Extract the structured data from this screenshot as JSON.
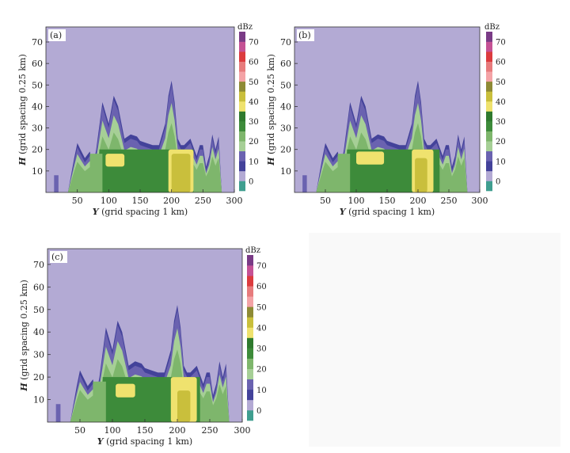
{
  "chart_data": [
    {
      "type": "heatmap",
      "panel_label": "(a)",
      "xlabel_var": "Y",
      "xlabel_rest": " (grid spacing 1 km)",
      "ylabel_var": "H",
      "ylabel_rest": " (grid spacing 0.25 km)",
      "xlim": [
        0,
        300
      ],
      "ylim": [
        0,
        77
      ],
      "x_ticks": [
        50,
        100,
        150,
        200,
        250,
        300
      ],
      "y_ticks": [
        10,
        20,
        30,
        40,
        50,
        60,
        70
      ],
      "colorbar_unit": "dBz",
      "colorbar_ticks": [
        0,
        10,
        20,
        30,
        40,
        50,
        60,
        70
      ],
      "echo_profile": {
        "x": [
          0,
          20,
          35,
          45,
          50,
          55,
          62,
          70,
          75,
          80,
          90,
          100,
          108,
          115,
          125,
          135,
          145,
          150,
          160,
          170,
          180,
          190,
          195,
          200,
          205,
          210,
          215,
          220,
          230,
          240,
          245,
          250,
          255,
          260,
          265,
          270,
          275,
          280,
          285,
          300
        ],
        "top": [
          0,
          0,
          0,
          16,
          23,
          20,
          16,
          19,
          12,
          20,
          42,
          32,
          45,
          40,
          25,
          27,
          26,
          24,
          23,
          22,
          22,
          32,
          45,
          52,
          42,
          25,
          22,
          22,
          25,
          17,
          22,
          22,
          12,
          17,
          27,
          20,
          26,
          0,
          0,
          0
        ]
      },
      "cores": [
        {
          "dbz": 30,
          "y_range": [
            195,
            235
          ],
          "h_range": [
            0,
            20
          ]
        },
        {
          "dbz": 35,
          "y_range": [
            200,
            230
          ],
          "h_range": [
            0,
            18
          ]
        },
        {
          "dbz": 30,
          "y_range": [
            95,
            125
          ],
          "h_range": [
            12,
            18
          ]
        }
      ]
    },
    {
      "type": "heatmap",
      "panel_label": "(b)",
      "xlabel_var": "Y",
      "xlabel_rest": " (grid spacing 1 km)",
      "ylabel_var": "H",
      "ylabel_rest": " (grid spacing 0.25 km)",
      "xlim": [
        0,
        300
      ],
      "ylim": [
        0,
        77
      ],
      "x_ticks": [
        50,
        100,
        150,
        200,
        250,
        300
      ],
      "y_ticks": [
        10,
        20,
        30,
        40,
        50,
        60,
        70
      ],
      "colorbar_unit": "dBz",
      "colorbar_ticks": [
        0,
        10,
        20,
        30,
        40,
        50,
        60,
        70
      ],
      "echo_profile": {
        "x": [
          0,
          20,
          35,
          45,
          50,
          55,
          62,
          70,
          75,
          80,
          90,
          100,
          108,
          115,
          125,
          135,
          145,
          150,
          160,
          170,
          180,
          190,
          195,
          200,
          205,
          210,
          215,
          220,
          230,
          240,
          245,
          250,
          255,
          260,
          265,
          270,
          275,
          280,
          285,
          300
        ],
        "top": [
          0,
          0,
          0,
          16,
          23,
          20,
          16,
          19,
          12,
          20,
          42,
          32,
          45,
          40,
          25,
          27,
          26,
          24,
          23,
          22,
          22,
          32,
          45,
          52,
          42,
          25,
          22,
          22,
          25,
          17,
          22,
          22,
          12,
          17,
          27,
          20,
          26,
          0,
          0,
          0
        ]
      },
      "cores": [
        {
          "dbz": 30,
          "y_range": [
            190,
            225
          ],
          "h_range": [
            0,
            20
          ]
        },
        {
          "dbz": 35,
          "y_range": [
            195,
            215
          ],
          "h_range": [
            0,
            16
          ]
        },
        {
          "dbz": 30,
          "y_range": [
            100,
            145
          ],
          "h_range": [
            13,
            19
          ]
        }
      ]
    },
    {
      "type": "heatmap",
      "panel_label": "(c)",
      "xlabel_var": "Y",
      "xlabel_rest": " (grid spacing 1 km)",
      "ylabel_var": "H",
      "ylabel_rest": " (grid spacing 0.25 km)",
      "xlim": [
        0,
        300
      ],
      "ylim": [
        0,
        77
      ],
      "x_ticks": [
        50,
        100,
        150,
        200,
        250,
        300
      ],
      "y_ticks": [
        10,
        20,
        30,
        40,
        50,
        60,
        70
      ],
      "colorbar_unit": "dBz",
      "colorbar_ticks": [
        0,
        10,
        20,
        30,
        40,
        50,
        60,
        70
      ],
      "echo_profile": {
        "x": [
          0,
          20,
          35,
          45,
          50,
          55,
          62,
          70,
          75,
          80,
          90,
          100,
          108,
          115,
          125,
          135,
          145,
          150,
          160,
          170,
          180,
          190,
          195,
          200,
          205,
          210,
          215,
          220,
          230,
          240,
          245,
          250,
          255,
          260,
          265,
          270,
          275,
          280,
          285,
          300
        ],
        "top": [
          0,
          0,
          0,
          16,
          23,
          20,
          16,
          19,
          12,
          20,
          42,
          32,
          45,
          40,
          25,
          27,
          26,
          24,
          23,
          22,
          22,
          32,
          45,
          52,
          42,
          25,
          22,
          22,
          25,
          17,
          22,
          22,
          12,
          17,
          27,
          20,
          26,
          0,
          0,
          0
        ]
      },
      "cores": [
        {
          "dbz": 30,
          "y_range": [
            190,
            230
          ],
          "h_range": [
            0,
            20
          ]
        },
        {
          "dbz": 35,
          "y_range": [
            200,
            220
          ],
          "h_range": [
            0,
            14
          ]
        },
        {
          "dbz": 30,
          "y_range": [
            105,
            135
          ],
          "h_range": [
            11,
            17
          ]
        }
      ]
    }
  ],
  "colors": {
    "background": "#b3aad4",
    "level_colors": [
      "#3f9e8f",
      "#b3aad4",
      "#43429a",
      "#6a62b0",
      "#a6cf96",
      "#7eb66c",
      "#3d8b3a",
      "#2f7a2e",
      "#efe26e",
      "#c9bf3c",
      "#8e8a35",
      "#f4a3a6",
      "#e77b7c",
      "#dc3b3e",
      "#c55295",
      "#7a3b86"
    ]
  }
}
